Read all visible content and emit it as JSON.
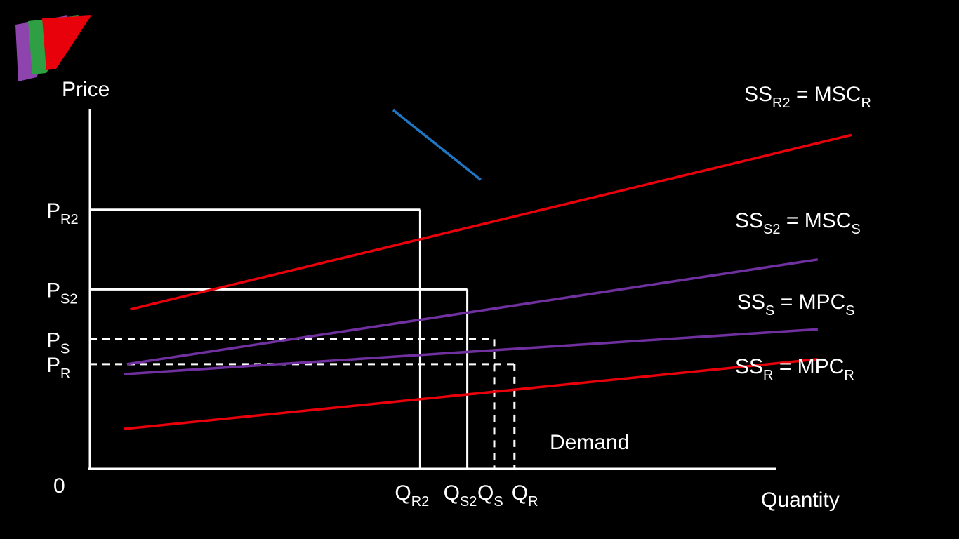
{
  "chart_data": {
    "type": "line",
    "title": "",
    "xlabel": "Quantity",
    "ylabel": "Price",
    "origin_label": "0",
    "colors": {
      "background": "#000000",
      "axis": "#ffffff",
      "ss_r": "#e8000b",
      "ss_s": "#7030a0",
      "demand": "#1f77c4",
      "logo_purple": "#8e44ad",
      "logo_green": "#2ea043",
      "logo_red": "#e8000b"
    },
    "series": [
      {
        "name": "SSR2 = MSCR",
        "label": {
          "main": "SS",
          "sub": "R2",
          "rest": " = MSC",
          "sub2": "R"
        },
        "color_key": "ss_r",
        "points": [
          [
            0.6,
            3.2
          ],
          [
            11.3,
            6.7
          ]
        ]
      },
      {
        "name": "SSS2 = MSCS",
        "label": {
          "main": "SS",
          "sub": "S2",
          "rest": " = MSC",
          "sub2": "S"
        },
        "color_key": "ss_s",
        "points": [
          [
            0.55,
            2.1
          ],
          [
            10.8,
            4.2
          ]
        ]
      },
      {
        "name": "SSS = MPCS",
        "label": {
          "main": "SS",
          "sub": "S",
          "rest": " = MPC",
          "sub2": "S"
        },
        "color_key": "ss_s",
        "points": [
          [
            0.5,
            1.9
          ],
          [
            10.8,
            2.8
          ]
        ]
      },
      {
        "name": "SSR = MPCR",
        "label": {
          "main": "SS",
          "sub": "R",
          "rest": " = MPC",
          "sub2": "R"
        },
        "color_key": "ss_r",
        "points": [
          [
            0.5,
            0.8
          ],
          [
            10.8,
            2.2
          ]
        ]
      },
      {
        "name": "Demand",
        "label": {
          "main": "Demand",
          "sub": "",
          "rest": "",
          "sub2": ""
        },
        "color_key": "demand",
        "points": [
          [
            4.5,
            7.2
          ],
          [
            5.8,
            5.8
          ]
        ]
      }
    ],
    "price_levels": [
      {
        "name": "PR2",
        "main": "P",
        "sub": "R2",
        "value": 5.2,
        "qty": 4.9,
        "style": "solid"
      },
      {
        "name": "PS2",
        "main": "P",
        "sub": "S2",
        "value": 3.6,
        "qty": 5.6,
        "style": "solid"
      },
      {
        "name": "PS",
        "main": "P",
        "sub": "S",
        "value": 2.6,
        "qty": 6.0,
        "style": "dashed"
      },
      {
        "name": "PR",
        "main": "P",
        "sub": "R",
        "value": 2.1,
        "qty": 6.3,
        "style": "dashed"
      }
    ],
    "quantity_levels": [
      {
        "name": "QR2",
        "main": "Q",
        "sub": "R2",
        "value": 4.9
      },
      {
        "name": "QS2",
        "main": "Q",
        "sub": "S2",
        "value": 5.6
      },
      {
        "name": "QS",
        "main": "Q",
        "sub": "S",
        "value": 6.0
      },
      {
        "name": "QR",
        "main": "Q",
        "sub": "R",
        "value": 6.3
      }
    ],
    "xlim": [
      0,
      10
    ],
    "ylim": [
      0,
      7
    ],
    "grid": false,
    "legend": "none"
  }
}
